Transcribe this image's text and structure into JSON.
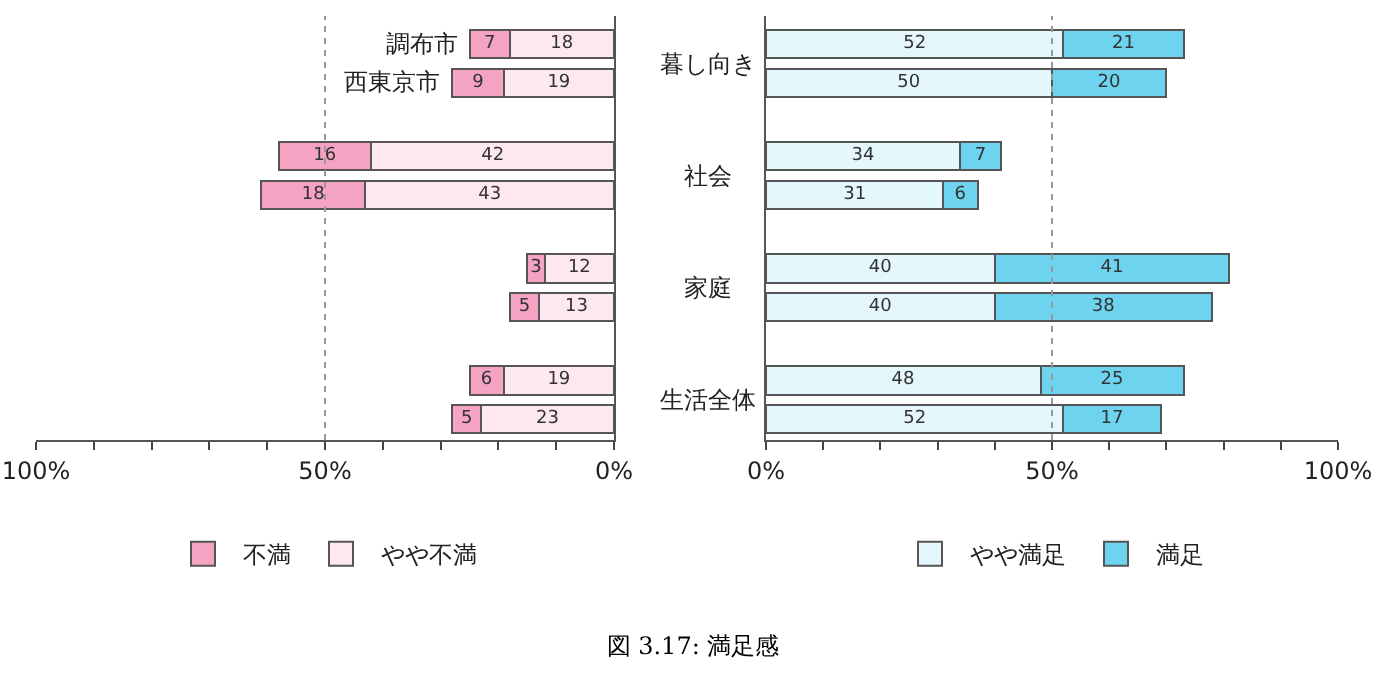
{
  "chart_data": [
    {
      "type": "bar",
      "orientation": "horizontal",
      "stacked": true,
      "data_labels": true,
      "legend": "bottom",
      "categories": [
        "調布市",
        "西東京市",
        null,
        null,
        null,
        null,
        null,
        null
      ],
      "series": [
        {
          "name": "やや不満",
          "color": "#fde8f0",
          "values": [
            18,
            19,
            42,
            43,
            12,
            13,
            19,
            23
          ]
        },
        {
          "name": "不満",
          "color": "#f4a3c2",
          "values": [
            7,
            9,
            16,
            18,
            3,
            5,
            6,
            5
          ]
        }
      ],
      "xlim": [
        100,
        0
      ],
      "xticks": [
        {
          "value": 100,
          "label": "100%"
        },
        {
          "value": 90,
          "label": null
        },
        {
          "value": 80,
          "label": null
        },
        {
          "value": 70,
          "label": null
        },
        {
          "value": 60,
          "label": null
        },
        {
          "value": 50,
          "label": "50%"
        },
        {
          "value": 40,
          "label": null
        },
        {
          "value": 30,
          "label": null
        },
        {
          "value": 20,
          "label": null
        },
        {
          "value": 10,
          "label": null
        },
        {
          "value": 0,
          "label": "0%"
        }
      ],
      "ref_lines": [
        {
          "axis": "x",
          "value": 50,
          "line_style": "dotted",
          "color": "#999999"
        }
      ],
      "annotations": [
        "図 3.17: 満足感"
      ]
    },
    {
      "type": "bar",
      "orientation": "horizontal",
      "stacked": true,
      "data_labels": true,
      "legend": "bottom",
      "categories": [
        null,
        null,
        null,
        null,
        null,
        null,
        null,
        null
      ],
      "series": [
        {
          "name": "やや満足",
          "color": "#e4f7fc",
          "values": [
            52,
            50,
            34,
            31,
            40,
            40,
            48,
            52
          ]
        },
        {
          "name": "満足",
          "color": "#6dd3ef",
          "values": [
            21,
            20,
            7,
            6,
            41,
            38,
            25,
            17
          ]
        }
      ],
      "xlim": [
        0,
        100
      ],
      "xticks": [
        {
          "value": 0,
          "label": "0%"
        },
        {
          "value": 10,
          "label": null
        },
        {
          "value": 20,
          "label": null
        },
        {
          "value": 30,
          "label": null
        },
        {
          "value": 40,
          "label": null
        },
        {
          "value": 50,
          "label": "50%"
        },
        {
          "value": 60,
          "label": null
        },
        {
          "value": 70,
          "label": null
        },
        {
          "value": 80,
          "label": null
        },
        {
          "value": 90,
          "label": null
        },
        {
          "value": 100,
          "label": "100%"
        }
      ],
      "ref_lines": [
        {
          "axis": "x",
          "value": 50,
          "line_style": "dotted",
          "color": "#999999"
        }
      ],
      "annotations": [
        "暮し向き",
        "社会",
        "家庭",
        "生活全体"
      ]
    }
  ]
}
